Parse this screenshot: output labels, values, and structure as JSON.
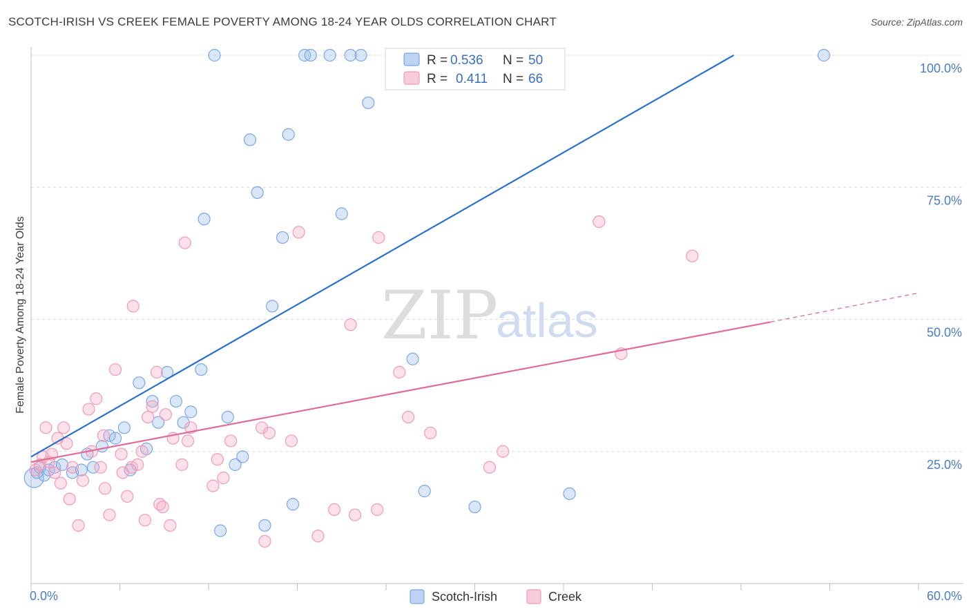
{
  "header": {
    "title": "SCOTCH-IRISH VS CREEK FEMALE POVERTY AMONG 18-24 YEAR OLDS CORRELATION CHART",
    "source": "Source: ZipAtlas.com"
  },
  "watermark": {
    "zip": "ZIP",
    "atlas": "atlas"
  },
  "legend_box": {
    "rows": [
      {
        "r_label": "R =",
        "r_value": "0.536",
        "n_label": "N =",
        "n_value": "50"
      },
      {
        "r_label": "R =",
        "r_value": "0.411",
        "n_label": "N =",
        "n_value": "66"
      }
    ]
  },
  "chart_data": {
    "type": "scatter",
    "title": "SCOTCH-IRISH VS CREEK FEMALE POVERTY AMONG 18-24 YEAR OLDS CORRELATION CHART",
    "xlabel": "",
    "ylabel": "Female Poverty Among 18-24 Year Olds",
    "xlim": [
      0,
      60
    ],
    "ylim": [
      0,
      100
    ],
    "x_tick_labels": [
      "0.0%",
      "60.0%"
    ],
    "y_tick_labels": [
      "100.0%",
      "75.0%",
      "50.0%",
      "25.0%"
    ],
    "y_ticks": [
      100,
      75,
      50,
      25
    ],
    "grid": true,
    "legend_position": "bottom",
    "colors": {
      "Scotch-Irish": "#7aa6e6",
      "Creek": "#f19ab5",
      "Scotch-Irish-line": "#2a6fcb",
      "Creek-line": "#e06b98"
    },
    "series": [
      {
        "name": "Scotch-Irish",
        "color": "#7aa6e6",
        "points": [
          [
            0.2,
            20.0
          ],
          [
            0.4,
            21.0
          ],
          [
            0.6,
            22.0
          ],
          [
            0.9,
            20.5
          ],
          [
            1.2,
            21.5
          ],
          [
            1.6,
            22.0
          ],
          [
            2.1,
            22.5
          ],
          [
            2.8,
            21.0
          ],
          [
            3.4,
            21.5
          ],
          [
            3.8,
            24.5
          ],
          [
            4.2,
            22.0
          ],
          [
            4.8,
            26.0
          ],
          [
            5.3,
            28.0
          ],
          [
            5.7,
            27.5
          ],
          [
            6.3,
            29.5
          ],
          [
            6.7,
            21.5
          ],
          [
            7.3,
            38.0
          ],
          [
            7.8,
            25.5
          ],
          [
            8.2,
            34.5
          ],
          [
            8.6,
            30.5
          ],
          [
            9.2,
            40.0
          ],
          [
            9.8,
            34.5
          ],
          [
            10.3,
            30.5
          ],
          [
            10.8,
            32.5
          ],
          [
            11.5,
            40.5
          ],
          [
            12.4,
            100.0
          ],
          [
            12.8,
            10.0
          ],
          [
            13.3,
            31.5
          ],
          [
            13.8,
            22.5
          ],
          [
            14.3,
            24.0
          ],
          [
            14.8,
            84.0
          ],
          [
            15.3,
            74.0
          ],
          [
            15.8,
            11.0
          ],
          [
            16.3,
            52.5
          ],
          [
            17.0,
            65.5
          ],
          [
            17.7,
            15.0
          ],
          [
            18.5,
            100.0
          ],
          [
            18.9,
            100.0
          ],
          [
            21.0,
            70.0
          ],
          [
            21.6,
            100.0
          ],
          [
            22.3,
            100.0
          ],
          [
            22.8,
            91.0
          ],
          [
            25.8,
            42.5
          ],
          [
            26.6,
            17.5
          ],
          [
            30.0,
            14.5
          ],
          [
            36.4,
            17.0
          ],
          [
            53.6,
            100.0
          ],
          [
            17.4,
            85.0
          ],
          [
            11.7,
            69.0
          ],
          [
            20.2,
            100.0
          ]
        ]
      },
      {
        "name": "Creek",
        "color": "#f19ab5",
        "points": [
          [
            0.3,
            21.5
          ],
          [
            0.6,
            22.5
          ],
          [
            0.8,
            24.0
          ],
          [
            1.0,
            29.5
          ],
          [
            1.2,
            23.0
          ],
          [
            1.4,
            24.5
          ],
          [
            1.6,
            21.0
          ],
          [
            1.8,
            27.5
          ],
          [
            2.0,
            19.0
          ],
          [
            2.2,
            29.5
          ],
          [
            2.4,
            26.5
          ],
          [
            2.6,
            16.0
          ],
          [
            2.8,
            22.0
          ],
          [
            3.2,
            11.0
          ],
          [
            3.5,
            19.5
          ],
          [
            3.9,
            33.0
          ],
          [
            4.1,
            25.0
          ],
          [
            4.4,
            35.0
          ],
          [
            4.7,
            22.0
          ],
          [
            4.9,
            28.0
          ],
          [
            5.0,
            18.0
          ],
          [
            5.3,
            13.0
          ],
          [
            5.7,
            40.5
          ],
          [
            6.1,
            24.5
          ],
          [
            6.5,
            16.5
          ],
          [
            6.8,
            22.0
          ],
          [
            6.9,
            52.5
          ],
          [
            7.2,
            22.5
          ],
          [
            7.5,
            25.0
          ],
          [
            7.7,
            12.0
          ],
          [
            7.9,
            31.5
          ],
          [
            8.2,
            33.5
          ],
          [
            8.5,
            40.0
          ],
          [
            8.7,
            15.0
          ],
          [
            8.9,
            14.5
          ],
          [
            9.1,
            32.0
          ],
          [
            9.4,
            11.0
          ],
          [
            10.2,
            22.5
          ],
          [
            10.4,
            64.5
          ],
          [
            10.6,
            27.0
          ],
          [
            10.8,
            29.5
          ],
          [
            12.3,
            18.5
          ],
          [
            12.6,
            23.5
          ],
          [
            13.0,
            20.0
          ],
          [
            13.5,
            27.0
          ],
          [
            15.6,
            29.5
          ],
          [
            15.8,
            8.0
          ],
          [
            16.1,
            28.5
          ],
          [
            17.6,
            27.0
          ],
          [
            18.1,
            66.5
          ],
          [
            19.4,
            9.0
          ],
          [
            20.5,
            14.0
          ],
          [
            21.6,
            49.0
          ],
          [
            21.9,
            13.0
          ],
          [
            23.4,
            14.0
          ],
          [
            23.5,
            65.5
          ],
          [
            24.9,
            40.0
          ],
          [
            25.5,
            31.5
          ],
          [
            27.0,
            28.5
          ],
          [
            31.0,
            22.0
          ],
          [
            31.9,
            25.0
          ],
          [
            38.4,
            68.5
          ],
          [
            39.9,
            43.5
          ],
          [
            44.7,
            62.0
          ],
          [
            6.2,
            21.0
          ],
          [
            9.6,
            27.5
          ]
        ]
      }
    ],
    "trend_lines": [
      {
        "name": "Scotch-Irish",
        "x": [
          0,
          47.5
        ],
        "y": [
          24.0,
          100.0
        ],
        "color": "#2a6fcb",
        "dashed_extension": false
      },
      {
        "name": "Creek",
        "x": [
          0,
          50
        ],
        "y": [
          23.0,
          49.5
        ],
        "color": "#e06b98",
        "dashed_extension_to": [
          60,
          55.0
        ]
      }
    ],
    "legend": [
      {
        "name": "Scotch-Irish",
        "R": "0.536",
        "N": "50"
      },
      {
        "name": "Creek",
        "R": "0.411",
        "N": "66"
      }
    ]
  }
}
